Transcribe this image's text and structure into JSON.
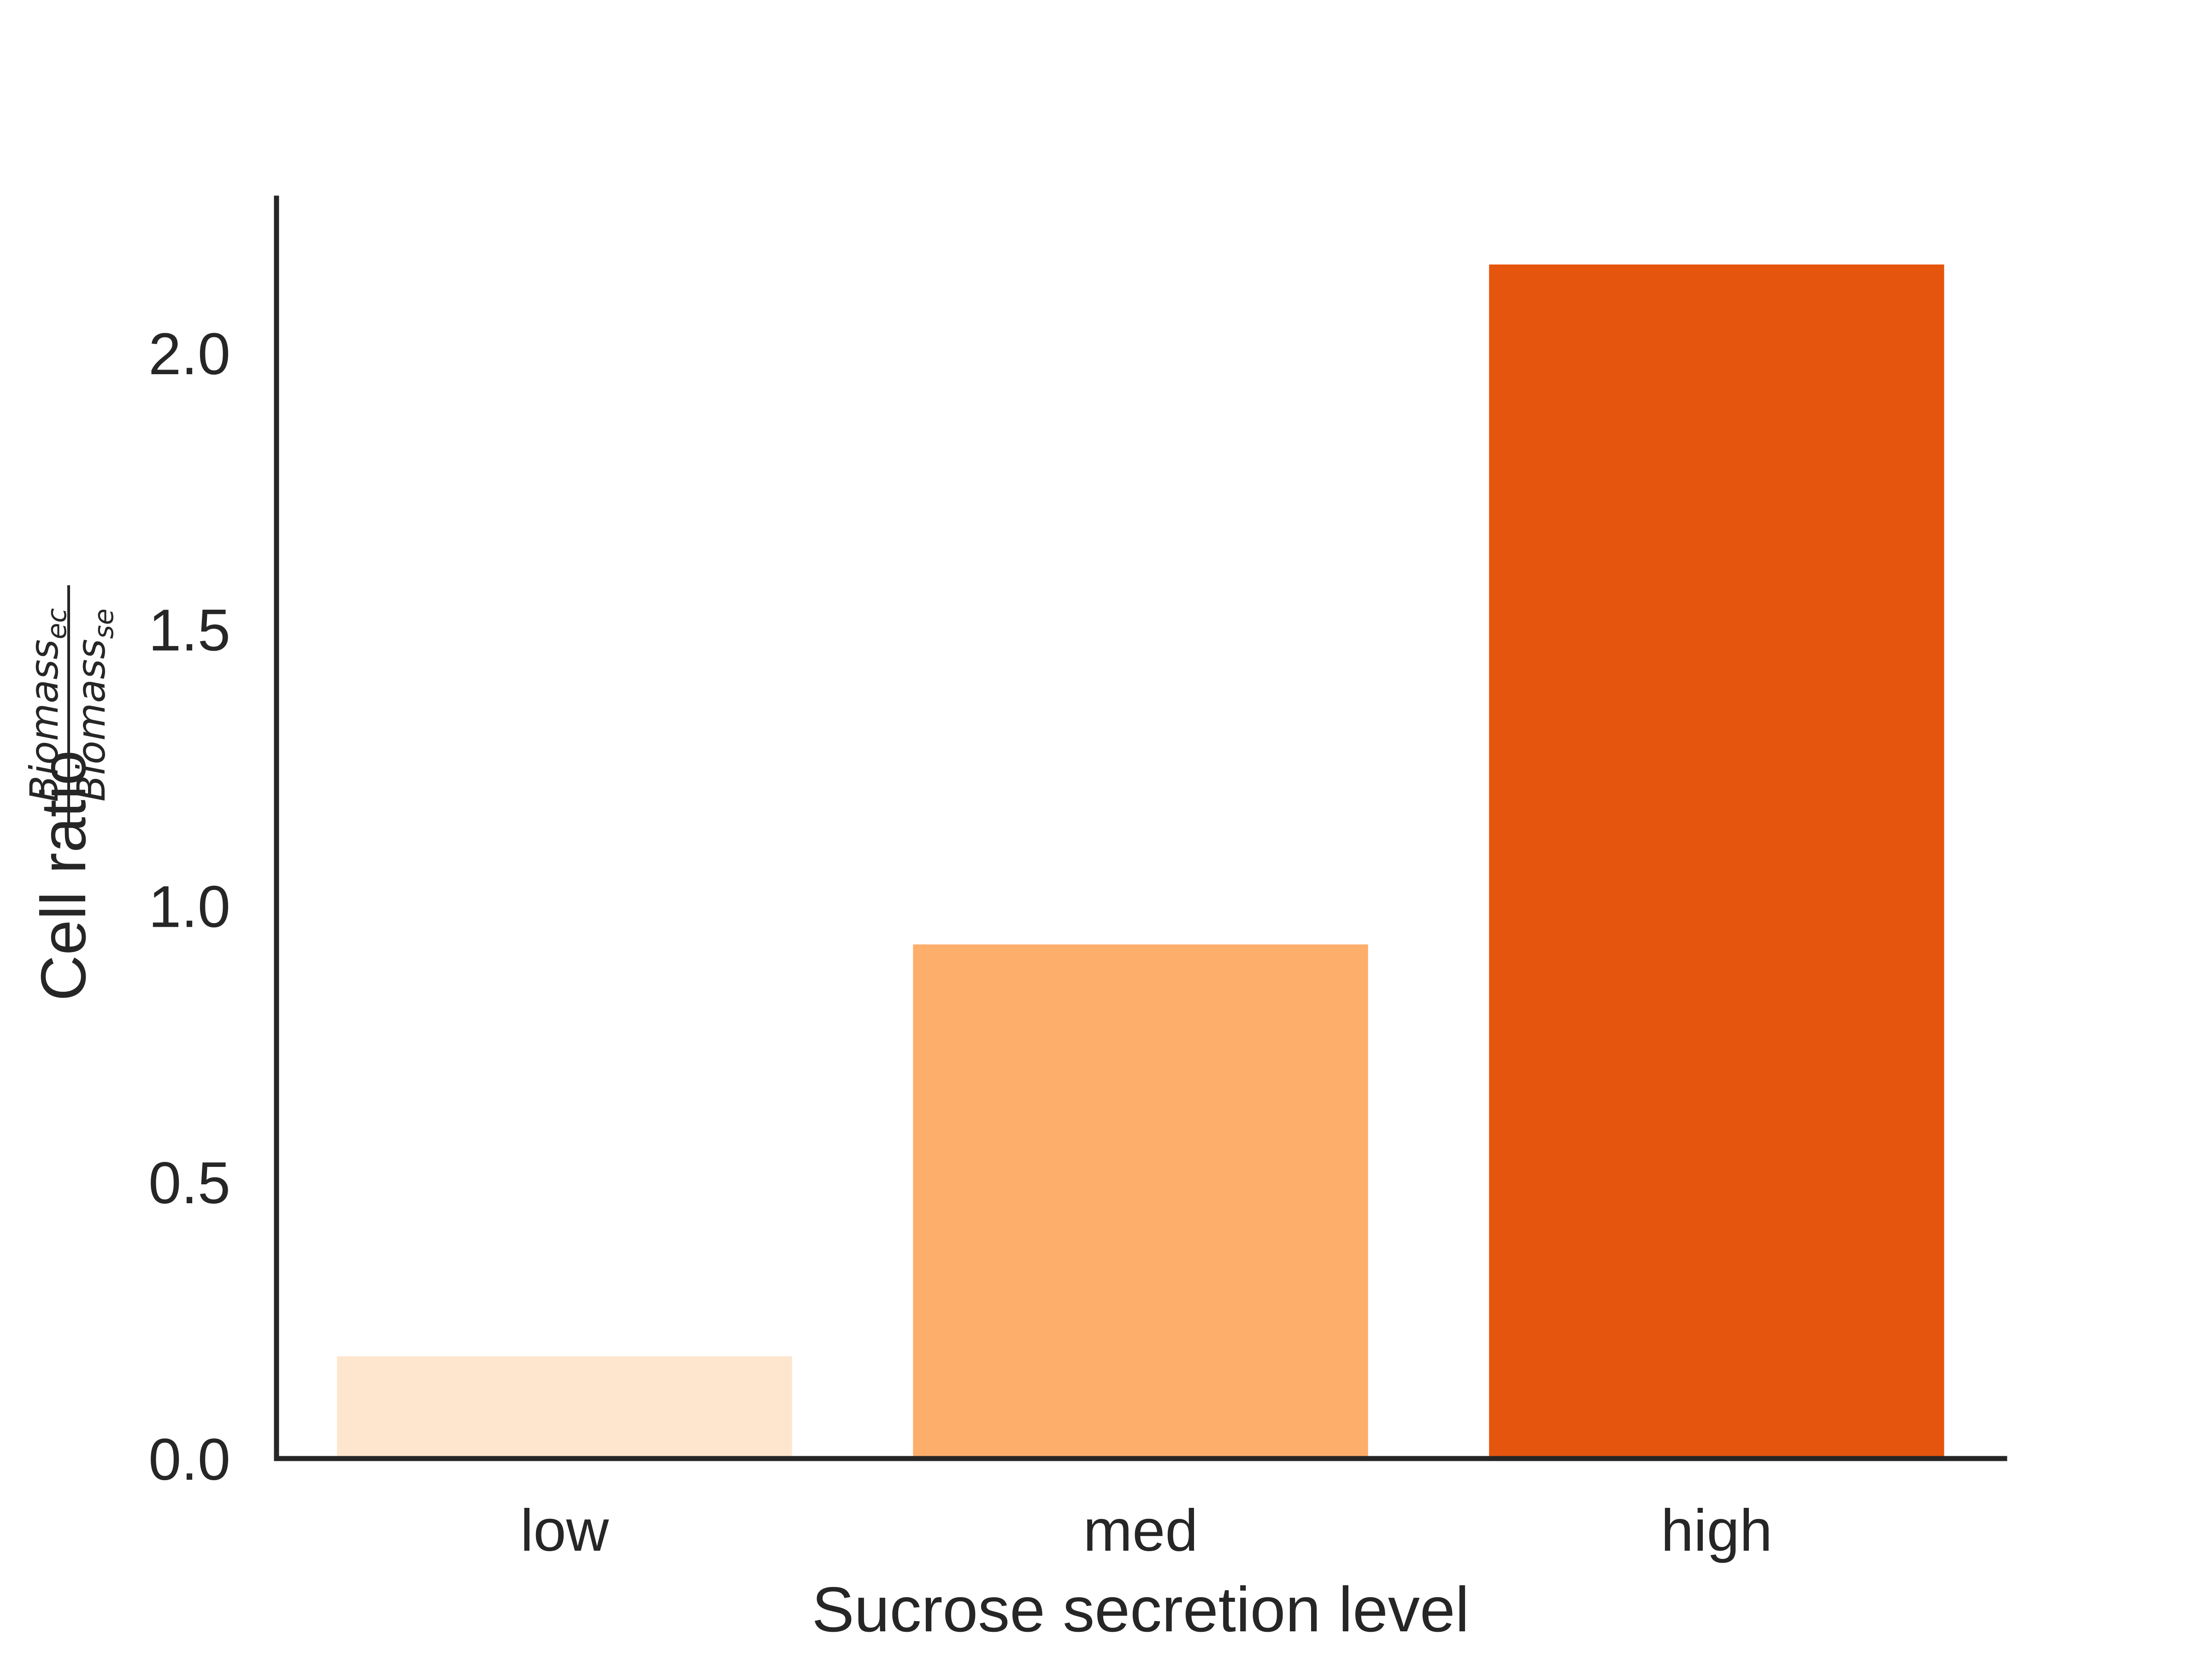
{
  "chart_data": {
    "type": "bar",
    "categories": [
      "low",
      "med",
      "high"
    ],
    "values": [
      0.185,
      0.93,
      2.16
    ],
    "colors": [
      "#fee6ce",
      "#fdae6b",
      "#e6550d"
    ],
    "title": "",
    "xlabel": "Sucrose secretion level",
    "ylabel": {
      "prefix": "Cell ratio",
      "numerator": "Biomass",
      "numerator_sub": "ec",
      "denominator": "Biomass",
      "denominator_sub": "se"
    },
    "ylim": [
      0,
      2.28
    ],
    "yticks": [
      "0.0",
      "0.5",
      "1.0",
      "1.5",
      "2.0"
    ],
    "grid": false,
    "legend": "none",
    "axis_color": "#262626"
  }
}
